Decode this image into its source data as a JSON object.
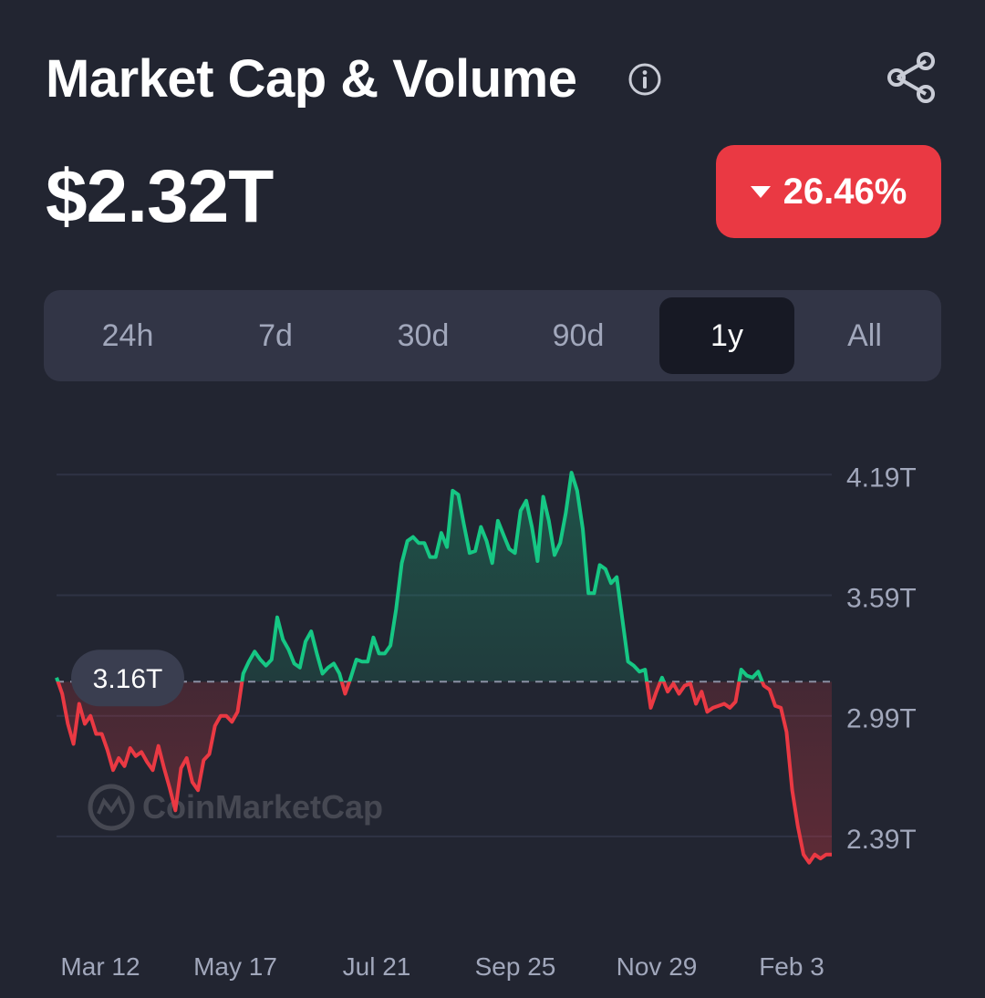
{
  "header": {
    "title": "Market Cap & Volume",
    "info_icon": "info-circle-icon",
    "share_icon": "share-icon"
  },
  "price": "$2.32T",
  "change": {
    "label": "26.46%",
    "direction": "down",
    "color": "#ea3943"
  },
  "tabs": [
    {
      "label": "24h",
      "active": false
    },
    {
      "label": "7d",
      "active": false
    },
    {
      "label": "30d",
      "active": false
    },
    {
      "label": "90d",
      "active": false
    },
    {
      "label": "1y",
      "active": true
    },
    {
      "label": "All",
      "active": false
    }
  ],
  "colors": {
    "up": "#16c784",
    "down": "#ea3943",
    "background": "#222531"
  },
  "chart_data": {
    "type": "line",
    "title": "",
    "xlabel": "",
    "ylabel": "",
    "x_ticks": [
      "Mar 12",
      "May 17",
      "Jul 21",
      "Sep 25",
      "Nov 29",
      "Feb 3"
    ],
    "y_ticks": [
      "4.19T",
      "3.59T",
      "2.99T",
      "2.39T"
    ],
    "y_tick_values": [
      4.19,
      3.59,
      2.99,
      2.39
    ],
    "ylim": [
      2.14,
      4.35
    ],
    "baseline": {
      "value": 3.16,
      "label": "3.16T"
    },
    "watermark": "CoinMarketCap",
    "grid": true,
    "series": [
      {
        "values": [
          3.18,
          3.1,
          2.95,
          2.85,
          3.05,
          2.95,
          2.99,
          2.9,
          2.9,
          2.82,
          2.72,
          2.78,
          2.74,
          2.83,
          2.79,
          2.81,
          2.76,
          2.72,
          2.84,
          2.73,
          2.63,
          2.52,
          2.73,
          2.78,
          2.66,
          2.62,
          2.77,
          2.8,
          2.94,
          2.99,
          2.99,
          2.96,
          3.01,
          3.2,
          3.26,
          3.31,
          3.27,
          3.24,
          3.27,
          3.48,
          3.37,
          3.32,
          3.25,
          3.23,
          3.36,
          3.41,
          3.3,
          3.2,
          3.23,
          3.25,
          3.2,
          3.1,
          3.18,
          3.27,
          3.26,
          3.26,
          3.38,
          3.3,
          3.3,
          3.34,
          3.52,
          3.75,
          3.86,
          3.88,
          3.85,
          3.85,
          3.78,
          3.78,
          3.9,
          3.83,
          4.11,
          4.09,
          3.94,
          3.8,
          3.81,
          3.93,
          3.86,
          3.75,
          3.96,
          3.89,
          3.82,
          3.8,
          4.01,
          4.06,
          3.93,
          3.76,
          4.08,
          3.96,
          3.79,
          3.85,
          4.0,
          4.2,
          4.11,
          3.92,
          3.6,
          3.6,
          3.74,
          3.72,
          3.65,
          3.68,
          3.47,
          3.26,
          3.24,
          3.21,
          3.22,
          3.03,
          3.11,
          3.18,
          3.11,
          3.15,
          3.1,
          3.14,
          3.15,
          3.05,
          3.11,
          3.01,
          3.03,
          3.04,
          3.05,
          3.03,
          3.06,
          3.22,
          3.19,
          3.18,
          3.21,
          3.14,
          3.12,
          3.04,
          3.03,
          2.91,
          2.62,
          2.44,
          2.3,
          2.26,
          2.3,
          2.28,
          2.3,
          2.3
        ]
      }
    ]
  }
}
